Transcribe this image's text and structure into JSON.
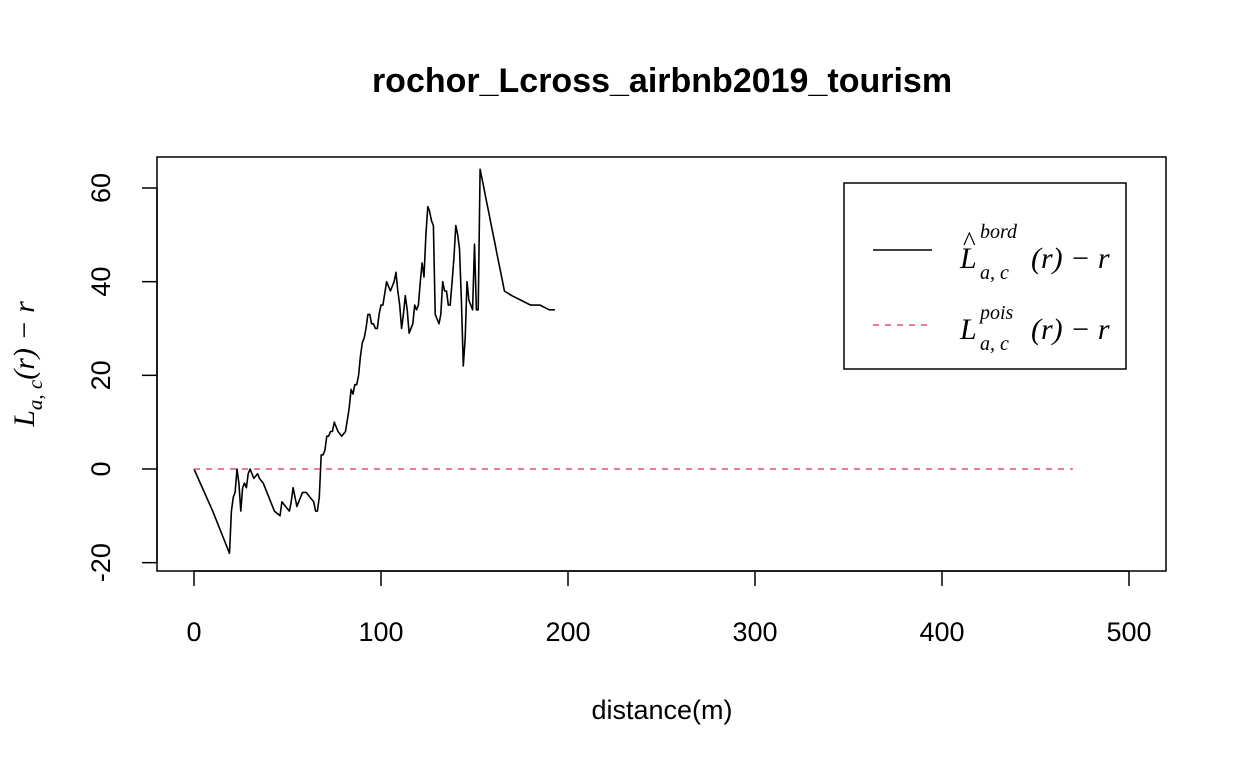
{
  "chart_data": {
    "type": "line",
    "title": "rochor_Lcross_airbnb2019_tourism",
    "xlabel": "distance(m)",
    "ylabel": {
      "base": "L",
      "sub": "a, c",
      "tail": "(r) − r"
    },
    "xlim": [
      0,
      500
    ],
    "ylim": [
      -20,
      63
    ],
    "x_ticks": [
      0,
      100,
      200,
      300,
      400,
      500
    ],
    "y_ticks": [
      -20,
      0,
      20,
      40,
      60
    ],
    "legend_position": "top-right",
    "series": [
      {
        "name": {
          "base": "L",
          "hat": "^",
          "sup": "bord",
          "sub": "a, c",
          "tail": "(r) − r"
        },
        "style": "solid",
        "color": "#000000",
        "x": [
          0,
          10,
          19,
          20,
          21,
          22,
          23,
          24,
          25,
          26,
          27,
          28,
          29,
          30,
          32,
          34,
          35,
          37,
          40,
          43,
          46,
          47,
          49,
          51,
          52,
          53,
          55,
          56,
          58,
          60,
          62,
          64,
          65,
          66,
          67,
          68,
          69,
          70,
          71,
          72,
          73,
          74,
          75,
          77,
          79,
          81,
          83,
          84,
          85,
          86,
          87,
          88,
          89,
          90,
          91,
          92,
          93,
          94,
          95,
          96,
          97,
          98,
          99,
          100,
          101,
          103,
          105,
          107,
          108,
          109,
          110,
          111,
          112,
          113,
          114,
          115,
          117,
          118,
          119,
          120,
          121,
          122,
          123,
          124,
          125,
          126,
          127,
          128,
          129,
          130,
          131,
          132,
          133,
          134,
          135,
          136,
          137,
          138,
          139,
          140,
          141,
          142,
          143,
          144,
          145,
          146,
          147,
          148,
          149,
          150,
          151,
          152,
          153,
          154,
          155,
          156,
          157,
          158,
          159,
          160,
          161,
          162,
          163,
          164,
          165,
          166,
          170,
          175,
          180,
          185,
          190,
          193
        ],
        "y": [
          0,
          -9,
          -18,
          -9,
          -6,
          -5,
          0,
          -3,
          -9,
          -4,
          -3,
          -4,
          -1,
          0,
          -2,
          -1,
          -2,
          -3,
          -6,
          -9,
          -10,
          -7,
          -8,
          -9,
          -7,
          -4,
          -8,
          -7,
          -5,
          -5,
          -6,
          -7,
          -9,
          -9,
          -6,
          3,
          3,
          4,
          7,
          7,
          8,
          8,
          10,
          8,
          7,
          8,
          13,
          17,
          16,
          18,
          18,
          20,
          24,
          27,
          28,
          30,
          33,
          33,
          31,
          31,
          30,
          30,
          33,
          35,
          35,
          40,
          38,
          40,
          42,
          38,
          35,
          30,
          33,
          37,
          34,
          29,
          31,
          35,
          34,
          35,
          40,
          44,
          41,
          50,
          56,
          55,
          53,
          52,
          33,
          32,
          31,
          33,
          40,
          38,
          38,
          35,
          35,
          40,
          45,
          52,
          50,
          47,
          36,
          22,
          28,
          40,
          36,
          35,
          34,
          48,
          34,
          34,
          64,
          62,
          60,
          58,
          56,
          54,
          52,
          50,
          48,
          46,
          44,
          42,
          40,
          38,
          37,
          36,
          35,
          35,
          34,
          34
        ]
      },
      {
        "name": {
          "base": "L",
          "sup": "pois",
          "sub": "a, c",
          "tail": "(r) − r"
        },
        "style": "dashed",
        "color": "#DF536B",
        "x": [
          0,
          470
        ],
        "y": [
          0,
          0
        ]
      }
    ]
  }
}
